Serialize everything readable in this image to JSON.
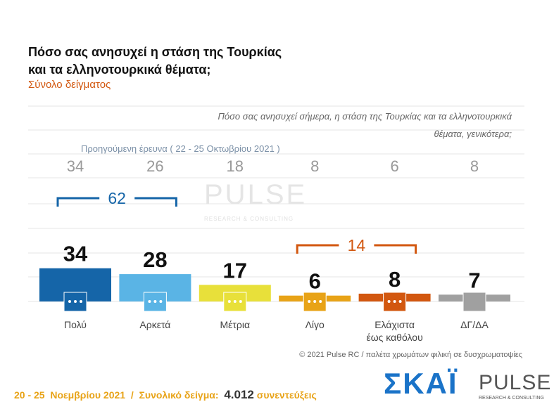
{
  "chart_data": {
    "type": "bar",
    "title": "Πόσο σας ανησυχεί η στάση της Τουρκίας\nκαι τα ελληνοτουρκικά θέματα;",
    "subtitle": "Σύνολο δείγματος",
    "question": "Πόσο σας ανησυχεί σήμερα, η στάση της Τουρκίας και τα ελληνοτουρκικά\nθέματα, γενικότερα;",
    "previous_label": "Προηγούμενη έρευνα  ( 22 - 25 Οκτωβρίου 2021 )",
    "categories": [
      "Πολύ",
      "Αρκετά",
      "Μέτρια",
      "Λίγο",
      "Ελάχιστα\nέως καθόλου",
      "ΔΓ/ΔΑ"
    ],
    "values": [
      34,
      28,
      17,
      6,
      8,
      7
    ],
    "previous_values": [
      34,
      26,
      18,
      8,
      6,
      8
    ],
    "colors": [
      "#1565a8",
      "#5ab4e5",
      "#e8e03a",
      "#e8a317",
      "#d2570f",
      "#a0a0a0"
    ],
    "brackets": [
      {
        "value": 62,
        "categories": [
          "Πολύ",
          "Αρκετά"
        ],
        "color": "#1565a8"
      },
      {
        "value": 14,
        "categories": [
          "Λίγο",
          "Ελάχιστα\nέως καθόλου"
        ],
        "color": "#d2570f"
      }
    ],
    "copyright": "© 2021 Pulse RC  /  παλέτα χρωμάτων φιλική σε δυσχρωματοψίες",
    "footer": {
      "date": "20 - 25  Νοεμβρίου 2021",
      "separator": "/",
      "sample_label": "Συνολικό δείγμα:",
      "sample": "4.012",
      "sample_unit": "συνεντεύξεις"
    },
    "logos": {
      "broadcaster": "ΣΚΑΪ",
      "pollster": "PULSE",
      "pollster_tagline": "RESEARCH & CONSULTING"
    }
  }
}
